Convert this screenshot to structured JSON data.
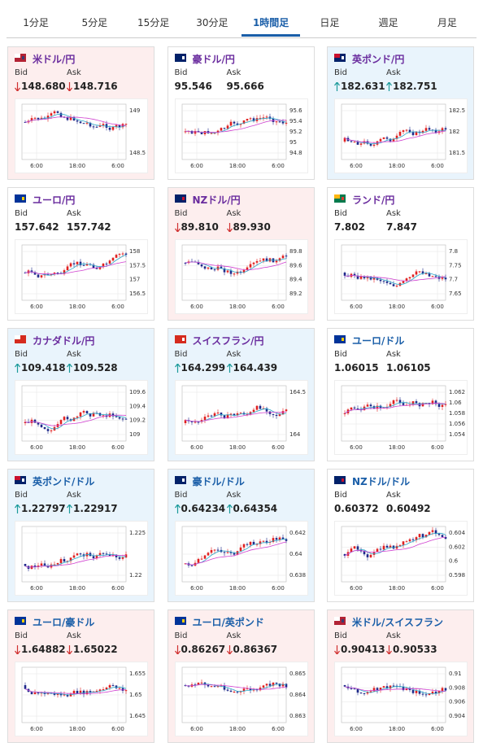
{
  "tabs": {
    "items": [
      "1分足",
      "5分足",
      "15分足",
      "30分足",
      "1時間足",
      "日足",
      "週足",
      "月足"
    ],
    "active": 4
  },
  "labels": {
    "bid": "Bid",
    "ask": "Ask"
  },
  "x_labels": [
    "6:00",
    "18:00",
    "6:00"
  ],
  "cards": [
    {
      "name": "米ドル/円",
      "bid": "148.680",
      "ask": "148.716",
      "trend": "down",
      "color": "#6a2c9e",
      "flag": "us",
      "y_labels": [
        "149",
        "148.5"
      ]
    },
    {
      "name": "豪ドル/円",
      "bid": "95.546",
      "ask": "95.666",
      "trend": "none",
      "color": "#6a2c9e",
      "flag": "au",
      "y_labels": [
        "95.6",
        "95.4",
        "95.2",
        "95",
        "94.8"
      ]
    },
    {
      "name": "英ポンド/円",
      "bid": "182.631",
      "ask": "182.751",
      "trend": "up",
      "color": "#6a2c9e",
      "flag": "gb",
      "y_labels": [
        "182.5",
        "182",
        "181.5"
      ]
    },
    {
      "name": "ユーロ/円",
      "bid": "157.642",
      "ask": "157.742",
      "trend": "none",
      "color": "#6a2c9e",
      "flag": "eu",
      "y_labels": [
        "158",
        "157.5",
        "157",
        "156.5"
      ]
    },
    {
      "name": "NZドル/円",
      "bid": "89.810",
      "ask": "89.930",
      "trend": "down",
      "color": "#6a2c9e",
      "flag": "nz",
      "y_labels": [
        "89.8",
        "89.6",
        "89.4",
        "89.2"
      ]
    },
    {
      "name": "ランド/円",
      "bid": "7.802",
      "ask": "7.847",
      "trend": "none",
      "color": "#6a2c9e",
      "flag": "za",
      "y_labels": [
        "7.8",
        "7.75",
        "7.7",
        "7.65"
      ]
    },
    {
      "name": "カナダドル/円",
      "bid": "109.418",
      "ask": "109.528",
      "trend": "up",
      "color": "#6a2c9e",
      "flag": "ca",
      "y_labels": [
        "109.6",
        "109.4",
        "109.2",
        "109"
      ]
    },
    {
      "name": "スイスフラン/円",
      "bid": "164.299",
      "ask": "164.439",
      "trend": "up",
      "color": "#6a2c9e",
      "flag": "ch",
      "y_labels": [
        "164.5",
        "164"
      ]
    },
    {
      "name": "ユーロ/ドル",
      "bid": "1.06015",
      "ask": "1.06105",
      "trend": "none",
      "color": "#1a5ea8",
      "flag": "eu",
      "y_labels": [
        "1.062",
        "1.06",
        "1.058",
        "1.056",
        "1.054"
      ]
    },
    {
      "name": "英ポンド/ドル",
      "bid": "1.22797",
      "ask": "1.22917",
      "trend": "up",
      "color": "#1a5ea8",
      "flag": "gb",
      "y_labels": [
        "1.225",
        "1.22"
      ]
    },
    {
      "name": "豪ドル/ドル",
      "bid": "0.64234",
      "ask": "0.64354",
      "trend": "up",
      "color": "#1a5ea8",
      "flag": "au",
      "y_labels": [
        "0.642",
        "0.64",
        "0.638"
      ]
    },
    {
      "name": "NZドル/ドル",
      "bid": "0.60372",
      "ask": "0.60492",
      "trend": "none",
      "color": "#1a5ea8",
      "flag": "nz",
      "y_labels": [
        "0.604",
        "0.602",
        "0.6",
        "0.598"
      ]
    },
    {
      "name": "ユーロ/豪ドル",
      "bid": "1.64882",
      "ask": "1.65022",
      "trend": "down",
      "color": "#1a5ea8",
      "flag": "eu",
      "y_labels": [
        "1.655",
        "1.65",
        "1.645"
      ]
    },
    {
      "name": "ユーロ/英ポンド",
      "bid": "0.86267",
      "ask": "0.86367",
      "trend": "down",
      "color": "#1a5ea8",
      "flag": "eu",
      "y_labels": [
        "0.865",
        "0.864",
        "0.863"
      ]
    },
    {
      "name": "米ドル/スイスフラン",
      "bid": "0.90413",
      "ask": "0.90533",
      "trend": "down",
      "color": "#1a5ea8",
      "flag": "us",
      "y_labels": [
        "0.91",
        "0.908",
        "0.906",
        "0.904"
      ]
    }
  ]
}
